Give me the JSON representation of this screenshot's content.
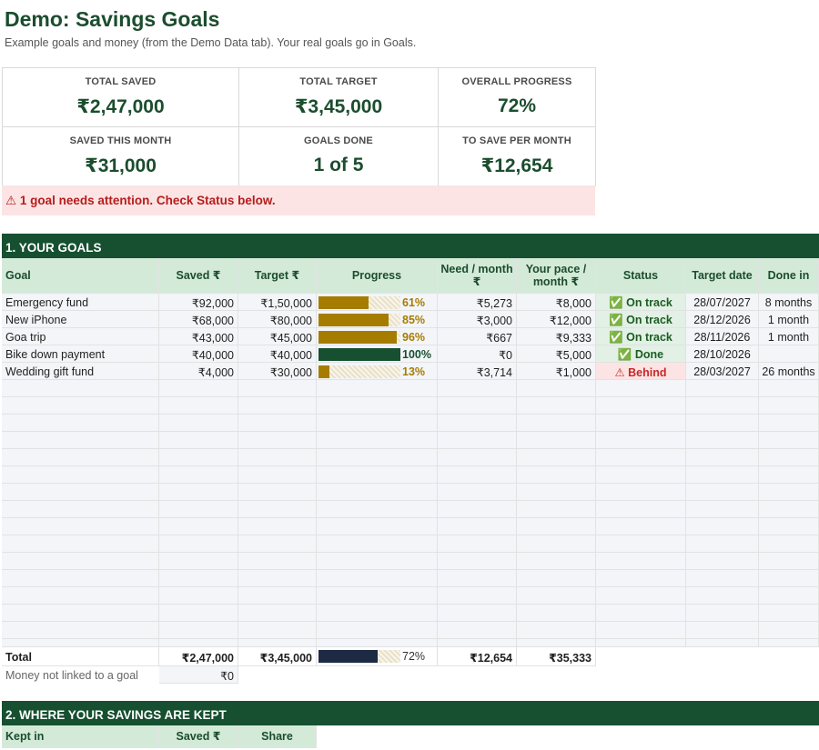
{
  "page": {
    "title": "Demo: Savings Goals",
    "subtitle": "Example goals and money (from the Demo Data tab). Your real goals go in Goals."
  },
  "kpis": [
    {
      "label": "TOTAL SAVED",
      "value": "₹2,47,000"
    },
    {
      "label": "TOTAL TARGET",
      "value": "₹3,45,000"
    },
    {
      "label": "OVERALL PROGRESS",
      "value": "72%"
    },
    {
      "label": "SAVED THIS MONTH",
      "value": "₹31,000"
    },
    {
      "label": "GOALS DONE",
      "value": "1 of 5"
    },
    {
      "label": "TO SAVE PER MONTH",
      "value": "₹12,654"
    }
  ],
  "alert": "⚠ 1 goal needs attention. Check Status below.",
  "goals_section": {
    "title": "1. YOUR GOALS",
    "headers": [
      "Goal",
      "Saved ₹",
      "Target ₹",
      "Progress",
      "Need / month ₹",
      "Your pace / month ₹",
      "Status",
      "Target date",
      "Done in"
    ],
    "rows": [
      {
        "goal": "Emergency fund",
        "saved": "₹92,000",
        "target": "₹1,50,000",
        "progress": 0.61,
        "pct": "61%",
        "need": "₹5,273",
        "pace": "₹8,000",
        "status": "✅ On track",
        "status_type": "ok",
        "date": "28/07/2027",
        "done_in": "8 months"
      },
      {
        "goal": "New iPhone",
        "saved": "₹68,000",
        "target": "₹80,000",
        "progress": 0.85,
        "pct": "85%",
        "need": "₹3,000",
        "pace": "₹12,000",
        "status": "✅ On track",
        "status_type": "ok",
        "date": "28/12/2026",
        "done_in": "1 month"
      },
      {
        "goal": "Goa trip",
        "saved": "₹43,000",
        "target": "₹45,000",
        "progress": 0.96,
        "pct": "96%",
        "need": "₹667",
        "pace": "₹9,333",
        "status": "✅ On track",
        "status_type": "ok",
        "date": "28/11/2026",
        "done_in": "1 month"
      },
      {
        "goal": "Bike down payment",
        "saved": "₹40,000",
        "target": "₹40,000",
        "progress": 1.0,
        "pct": "100%",
        "need": "₹0",
        "pace": "₹5,000",
        "status": "✅ Done",
        "status_type": "ok",
        "date": "28/10/2026",
        "done_in": ""
      },
      {
        "goal": "Wedding gift fund",
        "saved": "₹4,000",
        "target": "₹30,000",
        "progress": 0.13,
        "pct": "13%",
        "need": "₹3,714",
        "pace": "₹1,000",
        "status": "⚠ Behind",
        "status_type": "bad",
        "date": "28/03/2027",
        "done_in": "26 months"
      }
    ],
    "total": {
      "label": "Total",
      "saved": "₹2,47,000",
      "target": "₹3,45,000",
      "progress": 0.72,
      "pct": "72%",
      "need": "₹12,654",
      "pace": "₹35,333"
    },
    "unlinked": {
      "label": "Money not linked to a goal",
      "value": "₹0"
    }
  },
  "kept_section": {
    "title": "2. WHERE YOUR SAVINGS ARE KEPT",
    "headers": [
      "Kept in",
      "Saved ₹",
      "Share"
    ]
  },
  "colors": {
    "accent": "#165030",
    "progress_gold": "#a67c00",
    "progress_done": "#165030",
    "progress_total": "#1c2a44"
  }
}
